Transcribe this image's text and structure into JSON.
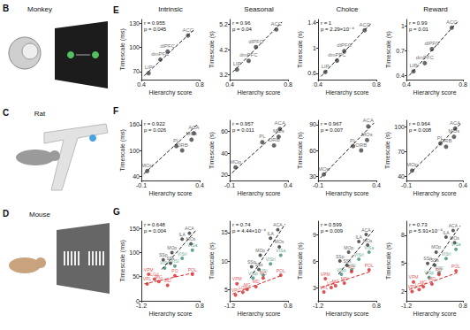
{
  "species": [
    {
      "letter": "B",
      "name": "Monkey"
    },
    {
      "letter": "C",
      "name": "Rat"
    },
    {
      "letter": "D",
      "name": "Mouse"
    }
  ],
  "row_letters": [
    "E",
    "F",
    "G"
  ],
  "column_titles": [
    "Intrinsic",
    "Seasonal",
    "Choice",
    "Reward"
  ],
  "chart_data": [
    {
      "type": "scatter",
      "marker": "circle",
      "x_label": "Hierarchy score",
      "y_label": "Timescale (ms)",
      "xlim": [
        0.4,
        0.8
      ],
      "xticks": [
        0.4,
        0.8
      ],
      "ylim": [
        60,
        135
      ],
      "yticks": [
        70,
        100,
        130
      ],
      "annotations": [
        "r = 0.955",
        "p = 0.045"
      ],
      "points": {
        "x": [
          0.45,
          0.53,
          0.58,
          0.72
        ],
        "y": [
          68,
          85,
          95,
          115
        ],
        "labels": [
          "LIP",
          "dmPFC",
          "dlPFC",
          "ACC"
        ],
        "colors": [
          "#444444",
          "#444444",
          "#444444",
          "#444444"
        ]
      },
      "fits": [
        {
          "x": [
            0.42,
            0.76
          ],
          "y": [
            65,
            122
          ],
          "color": "#222222",
          "line_style": "dashed"
        }
      ]
    },
    {
      "type": "scatter",
      "marker": "circle",
      "x_label": "Hierarchy score",
      "y_label": "Timescale (s)",
      "xlim": [
        0.4,
        0.8
      ],
      "xticks": [
        0.4,
        0.8
      ],
      "ylim": [
        3.0,
        5.4
      ],
      "yticks": [
        3.2,
        4.2,
        5.2
      ],
      "annotations": [
        "r = 0.96",
        "p = 0.04"
      ],
      "points": {
        "x": [
          0.45,
          0.53,
          0.58,
          0.72
        ],
        "y": [
          3.4,
          3.75,
          4.3,
          5.0
        ],
        "labels": [
          "LIP",
          "dmPFC",
          "dlPFC",
          "ACC"
        ],
        "colors": [
          "#444444",
          "#444444",
          "#444444",
          "#444444"
        ]
      },
      "fits": [
        {
          "x": [
            0.42,
            0.76
          ],
          "y": [
            3.3,
            5.3
          ],
          "color": "#222222",
          "line_style": "dashed"
        }
      ]
    },
    {
      "type": "scatter",
      "marker": "circle",
      "x_label": "Hierarchy score",
      "y_label": "Timescale (s)",
      "xlim": [
        0.4,
        0.8
      ],
      "xticks": [
        0.4,
        0.8
      ],
      "ylim": [
        0.5,
        1.45
      ],
      "yticks": [
        0.6,
        1,
        1.4
      ],
      "annotations": [
        "r = 1",
        "p = 2.29×10⁻⁴"
      ],
      "points": {
        "x": [
          0.45,
          0.53,
          0.58,
          0.72
        ],
        "y": [
          0.62,
          0.8,
          0.95,
          1.28
        ],
        "labels": [
          "LIP",
          "dmPFC",
          "dlPFC",
          "ACC"
        ],
        "colors": [
          "#444444",
          "#444444",
          "#444444",
          "#444444"
        ]
      },
      "fits": [
        {
          "x": [
            0.42,
            0.76
          ],
          "y": [
            0.55,
            1.38
          ],
          "color": "#222222",
          "line_style": "dashed"
        }
      ]
    },
    {
      "type": "scatter",
      "marker": "circle",
      "x_label": "Hierarchy score",
      "y_label": "Timescale (s)",
      "xlim": [
        0.4,
        0.8
      ],
      "xticks": [
        0.4,
        0.8
      ],
      "ylim": [
        0.35,
        1.08
      ],
      "yticks": [
        0.4,
        0.7,
        1
      ],
      "annotations": [
        "r = 0.99",
        "p = 0.01"
      ],
      "points": {
        "x": [
          0.45,
          0.53,
          0.58,
          0.72
        ],
        "y": [
          0.45,
          0.55,
          0.72,
          0.98
        ],
        "labels": [
          "LIP",
          "dmPFC",
          "dlPFC",
          "ACC"
        ],
        "colors": [
          "#444444",
          "#444444",
          "#444444",
          "#444444"
        ]
      },
      "fits": [
        {
          "x": [
            0.42,
            0.76
          ],
          "y": [
            0.4,
            1.05
          ],
          "color": "#222222",
          "line_style": "dashed"
        }
      ]
    },
    {
      "type": "scatter",
      "marker": "circle",
      "x_label": "Hierarchy score",
      "y_label": "Timescale (ms)",
      "xlim": [
        -0.1,
        0.4
      ],
      "xticks": [
        -0.1,
        0.4
      ],
      "ylim": [
        30,
        170
      ],
      "yticks": [
        40,
        100,
        160
      ],
      "annotations": [
        "r = 0.922",
        "p = 0.026"
      ],
      "points": {
        "x": [
          -0.05,
          0.2,
          0.25,
          0.33,
          0.35
        ],
        "y": [
          52,
          110,
          100,
          125,
          140
        ],
        "labels": [
          "MOp",
          "PL",
          "ORB",
          "MOs",
          "ACA"
        ],
        "colors": [
          "#444444",
          "#444444",
          "#444444",
          "#444444",
          "#444444"
        ]
      },
      "fits": [
        {
          "x": [
            -0.08,
            0.38
          ],
          "y": [
            45,
            160
          ],
          "color": "#222222",
          "line_style": "dashed"
        }
      ]
    },
    {
      "type": "scatter",
      "marker": "circle",
      "x_label": "Hierarchy score",
      "y_label": "Timescale (s)",
      "xlim": [
        -0.1,
        0.4
      ],
      "xticks": [
        -0.1,
        0.4
      ],
      "ylim": [
        15,
        70
      ],
      "yticks": [
        20,
        40,
        60
      ],
      "annotations": [
        "r = 0.957",
        "p = 0.011"
      ],
      "points": {
        "x": [
          -0.05,
          0.18,
          0.28,
          0.32,
          0.33
        ],
        "y": [
          27,
          50,
          47,
          55,
          62
        ],
        "labels": [
          "MOp",
          "PL",
          "ORB",
          "MOs",
          "ACA"
        ],
        "colors": [
          "#444444",
          "#444444",
          "#444444",
          "#444444",
          "#444444"
        ]
      },
      "fits": [
        {
          "x": [
            -0.08,
            0.38
          ],
          "y": [
            22,
            66
          ],
          "color": "#222222",
          "line_style": "dashed"
        }
      ]
    },
    {
      "type": "scatter",
      "marker": "circle",
      "x_label": "Hierarchy score",
      "y_label": "Timescale (s)",
      "xlim": [
        -0.1,
        0.4
      ],
      "xticks": [
        -0.1,
        0.4
      ],
      "ylim": [
        25,
        95
      ],
      "yticks": [
        30,
        60,
        90
      ],
      "annotations": [
        "r = 0.967",
        "p = 0.007"
      ],
      "points": {
        "x": [
          -0.05,
          0.2,
          0.27,
          0.32,
          0.33
        ],
        "y": [
          32,
          65,
          60,
          72,
          88
        ],
        "labels": [
          "MOp",
          "PL",
          "ORB",
          "MOs",
          "ACA"
        ],
        "colors": [
          "#444444",
          "#444444",
          "#444444",
          "#444444",
          "#444444"
        ]
      },
      "fits": [
        {
          "x": [
            -0.08,
            0.38
          ],
          "y": [
            28,
            92
          ],
          "color": "#222222",
          "line_style": "dashed"
        }
      ]
    },
    {
      "type": "scatter",
      "marker": "circle",
      "x_label": "Hierarchy score",
      "y_label": "Timescale (s)",
      "xlim": [
        -0.1,
        0.4
      ],
      "xticks": [
        -0.1,
        0.4
      ],
      "ylim": [
        35,
        108
      ],
      "yticks": [
        40,
        70,
        100
      ],
      "annotations": [
        "r = 0.964",
        "p = 0.008"
      ],
      "points": {
        "x": [
          -0.05,
          0.2,
          0.25,
          0.32,
          0.33
        ],
        "y": [
          47,
          80,
          76,
          88,
          98
        ],
        "labels": [
          "MOp",
          "PL",
          "ORB",
          "MOs",
          "ACA"
        ],
        "colors": [
          "#444444",
          "#444444",
          "#444444",
          "#444444",
          "#444444"
        ]
      },
      "fits": [
        {
          "x": [
            -0.08,
            0.38
          ],
          "y": [
            42,
            104
          ],
          "color": "#222222",
          "line_style": "dashed"
        }
      ]
    },
    {
      "type": "scatter",
      "marker": "circle",
      "x_label": "Hierarchy score",
      "y_label": "Timescale (ms)",
      "xlim": [
        -1.2,
        0.8
      ],
      "xticks": [
        -1.2,
        0.8
      ],
      "ylim": [
        0,
        165
      ],
      "yticks": [
        0,
        50,
        100,
        150
      ],
      "annotations": [
        "r = 0.648",
        "p = 0.004"
      ],
      "points": {
        "x": [
          0.45,
          0.2,
          0.5,
          0.55,
          -0.15,
          -0.45,
          -0.2,
          -0.4,
          -0.05,
          0.2,
          -0.95,
          -1.0,
          -0.75,
          -0.6,
          -0.3,
          -0.05,
          0.55
        ],
        "y": [
          140,
          128,
          118,
          105,
          100,
          85,
          78,
          68,
          72,
          88,
          55,
          35,
          45,
          40,
          32,
          52,
          55
        ],
        "labels": [
          "ACA",
          "ILA",
          "MOs",
          "VISa",
          "MOp",
          "SSp",
          "SSs",
          "VISp",
          "VISl",
          "VISrl",
          "VPM",
          "VPL",
          "LGd",
          "MG",
          "MD",
          "PO",
          "POL"
        ],
        "colors": [
          "#333333",
          "#333333",
          "#333333",
          "#3c8c78",
          "#333333",
          "#333333",
          "#333333",
          "#3c8c78",
          "#3c8c78",
          "#3c8c78",
          "#d62728",
          "#d62728",
          "#d62728",
          "#d62728",
          "#d62728",
          "#d62728",
          "#d62728"
        ]
      },
      "fits": [
        {
          "x": [
            -0.5,
            0.7
          ],
          "y": [
            65,
            148
          ],
          "color": "#222222",
          "line_style": "dashed"
        },
        {
          "x": [
            -1.1,
            0.6
          ],
          "y": [
            35,
            58
          ],
          "color": "#d62728",
          "line_style": "dashed"
        }
      ]
    },
    {
      "type": "scatter",
      "marker": "circle",
      "x_label": "Hierarchy score",
      "y_label": "Timescale (s)",
      "xlim": [
        -1.2,
        0.8
      ],
      "xticks": [
        -1.2,
        0.8
      ],
      "ylim": [
        3,
        17
      ],
      "yticks": [
        5,
        10,
        15
      ],
      "annotations": [
        "r = 0.74",
        "p = 4.44×10⁻⁴"
      ],
      "points": {
        "x": [
          0.45,
          0.2,
          0.5,
          0.55,
          -0.15,
          -0.45,
          -0.2,
          -0.4,
          -0.05,
          0.2,
          -0.95,
          -1.0,
          -0.75,
          -0.6,
          -0.3,
          -0.05,
          0.55
        ],
        "y": [
          15.5,
          14,
          12.5,
          11,
          11,
          9,
          8.5,
          7,
          7.5,
          9.5,
          6,
          4,
          4.5,
          5,
          5.5,
          7,
          7.5
        ],
        "labels": [
          "ACA",
          "ILA",
          "MOs",
          "VISa",
          "MOp",
          "SSp",
          "SSs",
          "VISp",
          "VISl",
          "VISrl",
          "VPM",
          "VPL",
          "LGd",
          "MG",
          "MD",
          "PO",
          "POL"
        ],
        "colors": [
          "#333333",
          "#333333",
          "#333333",
          "#3c8c78",
          "#333333",
          "#333333",
          "#333333",
          "#3c8c78",
          "#3c8c78",
          "#3c8c78",
          "#d62728",
          "#d62728",
          "#d62728",
          "#d62728",
          "#d62728",
          "#d62728",
          "#d62728"
        ]
      },
      "fits": [
        {
          "x": [
            -0.5,
            0.7
          ],
          "y": [
            7,
            16.5
          ],
          "color": "#222222",
          "line_style": "dashed"
        },
        {
          "x": [
            -1.1,
            0.6
          ],
          "y": [
            4.2,
            7.5
          ],
          "color": "#d62728",
          "line_style": "dashed"
        }
      ]
    },
    {
      "type": "scatter",
      "marker": "circle",
      "x_label": "Hierarchy score",
      "y_label": "Timescale (s)",
      "xlim": [
        -1.2,
        0.8
      ],
      "xticks": [
        -1.2,
        0.8
      ],
      "ylim": [
        1.5,
        10.5
      ],
      "yticks": [
        3,
        6,
        9
      ],
      "annotations": [
        "r = 0.599",
        "p = 0.009"
      ],
      "points": {
        "x": [
          0.45,
          0.2,
          0.5,
          0.55,
          -0.15,
          -0.45,
          -0.2,
          -0.4,
          -0.05,
          0.2,
          -0.95,
          -1.0,
          -0.75,
          -0.6,
          -0.3,
          -0.05,
          0.55
        ],
        "y": [
          9,
          8.2,
          7.8,
          7,
          7,
          6,
          5.5,
          4.5,
          5,
          6.2,
          4,
          2.5,
          3,
          3.2,
          3.5,
          4.8,
          5
        ],
        "labels": [
          "ACA",
          "ILA",
          "MOs",
          "VISa",
          "MOp",
          "SSp",
          "SSs",
          "VISp",
          "VISl",
          "VISrl",
          "VPM",
          "VPL",
          "LGd",
          "MG",
          "MD",
          "PO",
          "POL"
        ],
        "colors": [
          "#333333",
          "#333333",
          "#333333",
          "#3c8c78",
          "#333333",
          "#333333",
          "#333333",
          "#3c8c78",
          "#3c8c78",
          "#3c8c78",
          "#d62728",
          "#d62728",
          "#d62728",
          "#d62728",
          "#d62728",
          "#d62728",
          "#d62728"
        ]
      },
      "fits": [
        {
          "x": [
            -0.5,
            0.7
          ],
          "y": [
            4.5,
            9.5
          ],
          "color": "#222222",
          "line_style": "dashed"
        },
        {
          "x": [
            -1.1,
            0.6
          ],
          "y": [
            3,
            4.8
          ],
          "color": "#d62728",
          "line_style": "dashed"
        }
      ]
    },
    {
      "type": "scatter",
      "marker": "circle",
      "x_label": "Hierarchy score",
      "y_label": "Timescale (s)",
      "xlim": [
        -1.2,
        0.8
      ],
      "xticks": [
        -1.2,
        0.8
      ],
      "ylim": [
        1,
        9.5
      ],
      "yticks": [
        2,
        5,
        8
      ],
      "annotations": [
        "r = 0.73",
        "p = 5.91×10⁻⁴"
      ],
      "points": {
        "x": [
          0.45,
          0.2,
          0.5,
          0.55,
          -0.15,
          -0.45,
          -0.2,
          -0.4,
          -0.05,
          0.2,
          -0.95,
          -1.0,
          -0.75,
          -0.6,
          -0.3,
          -0.05,
          0.55
        ],
        "y": [
          8.5,
          7.8,
          7.2,
          6.5,
          6.2,
          5,
          4.8,
          3.5,
          4,
          5.5,
          3,
          2,
          2.2,
          2.5,
          2.8,
          3.8,
          4.2
        ],
        "labels": [
          "ACA",
          "ILA",
          "MOs",
          "VISa",
          "MOp",
          "SSp",
          "SSs",
          "VISp",
          "VISl",
          "VISrl",
          "VPM",
          "VPL",
          "LGd",
          "MG",
          "MD",
          "PO",
          "POL"
        ],
        "colors": [
          "#333333",
          "#333333",
          "#333333",
          "#3c8c78",
          "#333333",
          "#333333",
          "#333333",
          "#3c8c78",
          "#3c8c78",
          "#3c8c78",
          "#d62728",
          "#d62728",
          "#d62728",
          "#d62728",
          "#d62728",
          "#d62728",
          "#d62728"
        ]
      },
      "fits": [
        {
          "x": [
            -0.5,
            0.7
          ],
          "y": [
            3.8,
            9
          ],
          "color": "#222222",
          "line_style": "dashed"
        },
        {
          "x": [
            -1.1,
            0.6
          ],
          "y": [
            2.2,
            4
          ],
          "color": "#d62728",
          "line_style": "dashed"
        }
      ]
    }
  ]
}
